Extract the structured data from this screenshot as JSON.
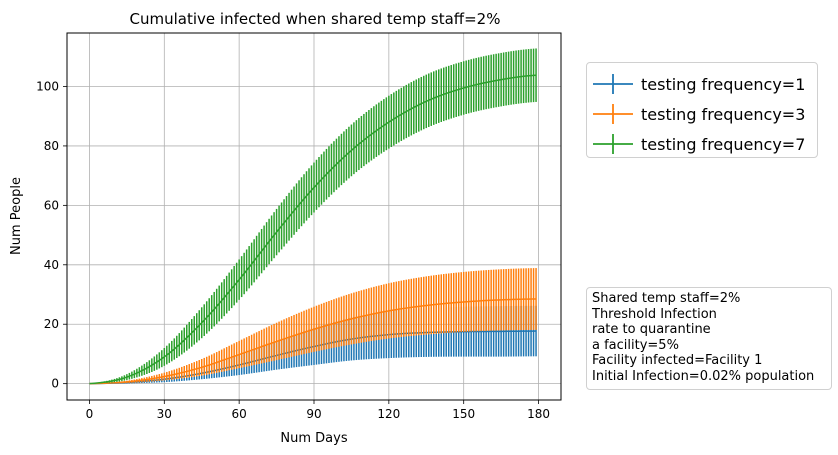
{
  "chart_data": {
    "type": "line",
    "title": "Cumulative infected when shared temp staff=2%",
    "xlabel": "Num Days",
    "ylabel": "Num People",
    "xlim": [
      -9,
      189
    ],
    "ylim": [
      -5.5,
      118
    ],
    "xticks": [
      0,
      30,
      60,
      90,
      120,
      150,
      180
    ],
    "yticks": [
      0,
      20,
      40,
      60,
      80,
      100
    ],
    "grid": true,
    "legend_position": "right-top",
    "x": [
      0,
      15,
      30,
      45,
      60,
      75,
      90,
      105,
      120,
      135,
      150,
      165,
      179
    ],
    "series": [
      {
        "name": "testing frequency=1",
        "color": "#1f77b4",
        "mean": [
          0,
          0.4,
          1.5,
          3.5,
          6.3,
          9.5,
          12.5,
          15.0,
          16.5,
          17.2,
          17.5,
          17.6,
          17.7
        ],
        "error": [
          0,
          0.3,
          1.0,
          2.0,
          3.4,
          4.8,
          6.2,
          7.2,
          7.9,
          8.2,
          8.4,
          8.5,
          8.5
        ]
      },
      {
        "name": "testing frequency=3",
        "color": "#ff7f0e",
        "mean": [
          0,
          0.6,
          2.4,
          5.5,
          9.8,
          14.2,
          18.3,
          21.8,
          24.5,
          26.3,
          27.5,
          28.2,
          28.5
        ],
        "error": [
          0,
          0.4,
          1.3,
          2.8,
          4.6,
          6.3,
          7.6,
          8.6,
          9.3,
          9.8,
          10.1,
          10.3,
          10.4
        ]
      },
      {
        "name": "testing frequency=7",
        "color": "#2ca02c",
        "mean": [
          0,
          2.2,
          9.0,
          20.5,
          35.0,
          51.0,
          66.0,
          78.5,
          88.0,
          95.0,
          99.5,
          102.3,
          103.8
        ],
        "error": [
          0,
          1.0,
          3.0,
          5.2,
          6.8,
          7.8,
          8.4,
          8.7,
          8.9,
          9.0,
          9.0,
          9.0,
          9.0
        ]
      }
    ]
  },
  "annotation": {
    "lines": [
      "Shared temp staff=2%",
      "Threshold Infection",
      "rate to quarantine",
      "a facility=5%",
      "Facility infected=Facility 1",
      "Initial Infection=0.02% population"
    ]
  }
}
